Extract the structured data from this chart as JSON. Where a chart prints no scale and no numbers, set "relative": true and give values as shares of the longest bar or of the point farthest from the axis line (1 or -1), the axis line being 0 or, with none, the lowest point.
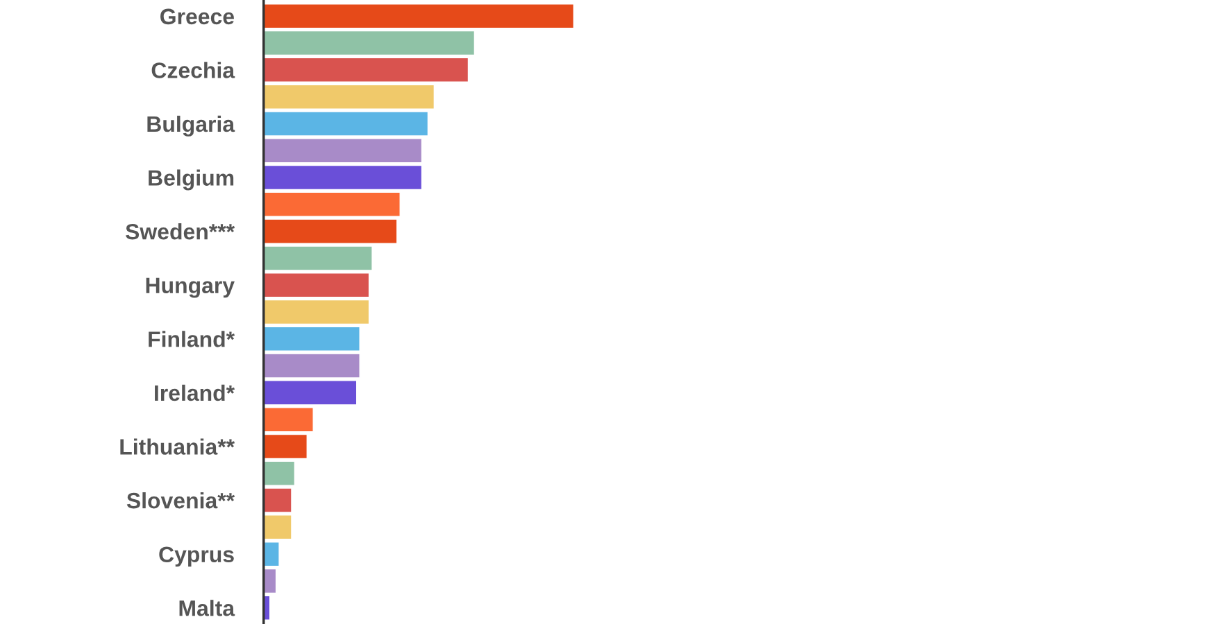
{
  "chart_data": {
    "type": "bar",
    "orientation": "horizontal",
    "relative": true,
    "categories": [
      "Greece",
      null,
      "Czechia",
      null,
      "Bulgaria",
      null,
      "Belgium",
      null,
      "Sweden***",
      null,
      "Hungary",
      null,
      "Finland*",
      null,
      "Ireland*",
      null,
      "Lithuania**",
      null,
      "Slovenia**",
      null,
      "Cyprus",
      null,
      "Malta"
    ],
    "values": [
      1,
      0.68,
      0.66,
      0.55,
      0.53,
      0.51,
      0.51,
      0.44,
      0.43,
      0.35,
      0.34,
      0.34,
      0.31,
      0.31,
      0.3,
      0.16,
      0.14,
      0.1,
      0.09,
      0.09,
      0.05,
      0.04,
      0.02
    ],
    "colors": [
      "#e64a19",
      "#8fc2a6",
      "#d9534f",
      "#f0c96a",
      "#5bb5e5",
      "#a88bc8",
      "#6a4fd8",
      "#fb6a35",
      "#e64a19",
      "#8fc2a6",
      "#d9534f",
      "#f0c96a",
      "#5bb5e5",
      "#a88bc8",
      "#6a4fd8",
      "#fb6a35",
      "#e64a19",
      "#8fc2a6",
      "#d9534f",
      "#f0c96a",
      "#5bb5e5",
      "#a88bc8",
      "#6a4fd8"
    ]
  }
}
